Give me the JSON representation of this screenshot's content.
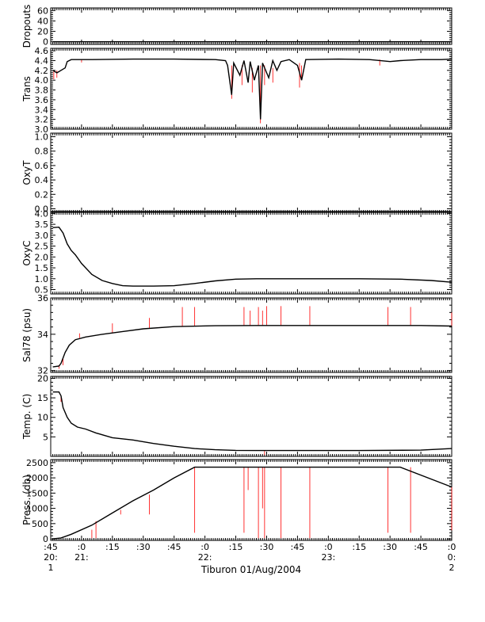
{
  "chart_data": {
    "type": "line",
    "title": "",
    "time_axis": {
      "ticks": [
        {
          "label": ":45",
          "hour": "20:",
          "day": "1"
        },
        {
          "label": ":0",
          "hour": "21:",
          "day": ""
        },
        {
          "label": ":15",
          "hour": "",
          "day": ""
        },
        {
          "label": ":30",
          "hour": "",
          "day": ""
        },
        {
          "label": ":45",
          "hour": "",
          "day": ""
        },
        {
          "label": ":0",
          "hour": "22:",
          "day": ""
        },
        {
          "label": ":15",
          "hour": "",
          "day": ""
        },
        {
          "label": ":30",
          "hour": "",
          "day": ""
        },
        {
          "label": ":45",
          "hour": "",
          "day": ""
        },
        {
          "label": ":0",
          "hour": "23:",
          "day": ""
        },
        {
          "label": ":15",
          "hour": "",
          "day": ""
        },
        {
          "label": ":30",
          "hour": "",
          "day": ""
        },
        {
          "label": ":45",
          "hour": "",
          "day": ""
        },
        {
          "label": ":0",
          "hour": "0:",
          "day": "2"
        }
      ],
      "xlabel": "Tiburon 01/Aug/2004",
      "range_minutes": [
        0,
        195
      ]
    },
    "line_color": "#000000",
    "spike_color": "#ff0000",
    "panels": [
      {
        "id": "dropouts",
        "ylabel": "Dropouts",
        "ylim": [
          -5,
          65
        ],
        "ticks": [
          {
            "v": 0,
            "t": "0"
          },
          {
            "v": 20,
            "t": "20"
          },
          {
            "v": 40,
            "t": "40"
          },
          {
            "v": 60,
            "t": "60"
          }
        ],
        "series": [
          [
            1,
            0
          ],
          [
            195,
            0
          ]
        ],
        "spikes": []
      },
      {
        "id": "trans",
        "ylabel": "Trans",
        "ylim": [
          3.0,
          4.65
        ],
        "ticks": [
          {
            "v": 3.0,
            "t": "3.0"
          },
          {
            "v": 3.2,
            "t": "3.2"
          },
          {
            "v": 3.4,
            "t": "3.4"
          },
          {
            "v": 3.6,
            "t": "3.6"
          },
          {
            "v": 3.8,
            "t": "3.8"
          },
          {
            "v": 4.0,
            "t": "4.0"
          },
          {
            "v": 4.2,
            "t": "4.2"
          },
          {
            "v": 4.4,
            "t": "4.4"
          },
          {
            "v": 4.6,
            "t": "4.6"
          }
        ],
        "series": [
          [
            1,
            4.2
          ],
          [
            3,
            4.15
          ],
          [
            5,
            4.2
          ],
          [
            7,
            4.25
          ],
          [
            8,
            4.38
          ],
          [
            10,
            4.42
          ],
          [
            20,
            4.42
          ],
          [
            40,
            4.43
          ],
          [
            60,
            4.43
          ],
          [
            80,
            4.42
          ],
          [
            85,
            4.4
          ],
          [
            86,
            4.3
          ],
          [
            88,
            3.7
          ],
          [
            89,
            4.35
          ],
          [
            92,
            4.1
          ],
          [
            94,
            4.4
          ],
          [
            96,
            3.95
          ],
          [
            97,
            4.38
          ],
          [
            99,
            4.0
          ],
          [
            101,
            4.3
          ],
          [
            102,
            3.2
          ],
          [
            103,
            4.35
          ],
          [
            106,
            4.05
          ],
          [
            108,
            4.4
          ],
          [
            110,
            4.2
          ],
          [
            112,
            4.38
          ],
          [
            116,
            4.42
          ],
          [
            120,
            4.3
          ],
          [
            122,
            4.0
          ],
          [
            124,
            4.42
          ],
          [
            140,
            4.43
          ],
          [
            155,
            4.42
          ],
          [
            165,
            4.38
          ],
          [
            170,
            4.4
          ],
          [
            180,
            4.42
          ],
          [
            190,
            4.42
          ],
          [
            195,
            4.43
          ]
        ],
        "spikes": [
          [
            1.5,
            4.2,
            4.02
          ],
          [
            3,
            4.2,
            4.05
          ],
          [
            15,
            4.42,
            4.36
          ],
          [
            88,
            4.3,
            3.62
          ],
          [
            93,
            4.3,
            3.9
          ],
          [
            98,
            4.25,
            3.75
          ],
          [
            102,
            4.3,
            3.12
          ],
          [
            104,
            4.3,
            3.9
          ],
          [
            108,
            4.25,
            3.95
          ],
          [
            121,
            4.35,
            3.85
          ],
          [
            122,
            4.3,
            4.0
          ],
          [
            160,
            4.42,
            4.3
          ]
        ]
      },
      {
        "id": "oxyt",
        "ylabel": "OxyT",
        "ylim": [
          -0.05,
          1.05
        ],
        "ticks": [
          {
            "v": 0.0,
            "t": "0.0"
          },
          {
            "v": 0.2,
            "t": "0.2"
          },
          {
            "v": 0.4,
            "t": "0.4"
          },
          {
            "v": 0.6,
            "t": "0.6"
          },
          {
            "v": 0.8,
            "t": "0.8"
          },
          {
            "v": 1.0,
            "t": "1.0"
          }
        ],
        "series": [
          [
            0,
            -0.04
          ],
          [
            195,
            -0.04
          ]
        ],
        "spikes": []
      },
      {
        "id": "oxyc",
        "ylabel": "OxyC",
        "ylim": [
          0.3,
          4.05
        ],
        "ticks": [
          {
            "v": 0.5,
            "t": "0.5"
          },
          {
            "v": 1.0,
            "t": "1.0"
          },
          {
            "v": 1.5,
            "t": "1.5"
          },
          {
            "v": 2.0,
            "t": "2.0"
          },
          {
            "v": 2.5,
            "t": "2.5"
          },
          {
            "v": 3.0,
            "t": "3.0"
          },
          {
            "v": 3.5,
            "t": "3.5"
          },
          {
            "v": 4.0,
            "t": "4.0"
          }
        ],
        "series": [
          [
            1,
            3.35
          ],
          [
            4,
            3.37
          ],
          [
            6,
            3.1
          ],
          [
            8,
            2.6
          ],
          [
            10,
            2.3
          ],
          [
            12,
            2.1
          ],
          [
            15,
            1.7
          ],
          [
            20,
            1.2
          ],
          [
            25,
            0.92
          ],
          [
            30,
            0.78
          ],
          [
            35,
            0.68
          ],
          [
            40,
            0.66
          ],
          [
            50,
            0.66
          ],
          [
            60,
            0.68
          ],
          [
            70,
            0.78
          ],
          [
            80,
            0.9
          ],
          [
            90,
            0.98
          ],
          [
            100,
            1.0
          ],
          [
            150,
            1.0
          ],
          [
            170,
            0.98
          ],
          [
            185,
            0.92
          ],
          [
            195,
            0.84
          ]
        ],
        "spikes": []
      },
      {
        "id": "sal78",
        "ylabel": "Sal78 (psu)",
        "ylim": [
          31.9,
          36.0
        ],
        "ticks": [
          {
            "v": 32,
            "t": "32"
          },
          {
            "v": 34,
            "t": "34"
          },
          {
            "v": 36,
            "t": "36"
          }
        ],
        "series": [
          [
            1,
            32.2
          ],
          [
            4,
            32.25
          ],
          [
            5,
            32.4
          ],
          [
            7,
            33.0
          ],
          [
            9,
            33.4
          ],
          [
            12,
            33.7
          ],
          [
            17,
            33.85
          ],
          [
            25,
            34.0
          ],
          [
            35,
            34.15
          ],
          [
            45,
            34.3
          ],
          [
            60,
            34.42
          ],
          [
            80,
            34.47
          ],
          [
            100,
            34.48
          ],
          [
            150,
            34.48
          ],
          [
            180,
            34.48
          ],
          [
            195,
            34.45
          ]
        ],
        "spikes": [
          [
            4,
            32.3,
            32.1
          ],
          [
            6,
            32.7,
            32.3
          ],
          [
            14,
            33.8,
            34.05
          ],
          [
            30,
            34.1,
            34.6
          ],
          [
            48,
            34.35,
            34.9
          ],
          [
            64,
            34.45,
            35.5
          ],
          [
            70,
            34.45,
            35.5
          ],
          [
            94,
            34.48,
            35.5
          ],
          [
            97,
            34.48,
            35.3
          ],
          [
            101,
            34.48,
            35.5
          ],
          [
            103,
            34.48,
            35.3
          ],
          [
            105,
            34.48,
            35.55
          ],
          [
            112,
            34.48,
            35.55
          ],
          [
            126,
            34.48,
            35.55
          ],
          [
            164,
            34.48,
            35.5
          ],
          [
            175,
            34.48,
            35.5
          ],
          [
            195,
            34.45,
            35.2
          ]
        ]
      },
      {
        "id": "temp",
        "ylabel": "Temp. (C)",
        "ylim": [
          0,
          20.5
        ],
        "ticks": [
          {
            "v": 5,
            "t": "5"
          },
          {
            "v": 10,
            "t": "10"
          },
          {
            "v": 15,
            "t": "15"
          },
          {
            "v": 20,
            "t": "20"
          }
        ],
        "series": [
          [
            1,
            16.5
          ],
          [
            4,
            16.5
          ],
          [
            5,
            15.5
          ],
          [
            6,
            12.5
          ],
          [
            8,
            10
          ],
          [
            10,
            8.5
          ],
          [
            13,
            7.5
          ],
          [
            17,
            7
          ],
          [
            22,
            6
          ],
          [
            30,
            4.8
          ],
          [
            40,
            4.2
          ],
          [
            50,
            3.3
          ],
          [
            60,
            2.6
          ],
          [
            70,
            2.0
          ],
          [
            80,
            1.7
          ],
          [
            90,
            1.55
          ],
          [
            100,
            1.5
          ],
          [
            150,
            1.5
          ],
          [
            180,
            1.6
          ],
          [
            195,
            2.0
          ]
        ],
        "spikes": [
          [
            5,
            15.5,
            14
          ],
          [
            104,
            1.5,
            0.3
          ]
        ]
      },
      {
        "id": "press",
        "ylabel": "Press. (db)",
        "ylim": [
          -50,
          2600
        ],
        "ticks": [
          {
            "v": 0,
            "t": "0"
          },
          {
            "v": 500,
            "t": "500"
          },
          {
            "v": 1000,
            "t": "1000"
          },
          {
            "v": 1500,
            "t": "1500"
          },
          {
            "v": 2000,
            "t": "2000"
          },
          {
            "v": 2500,
            "t": "2500"
          }
        ],
        "series": [
          [
            1,
            0
          ],
          [
            5,
            30
          ],
          [
            10,
            150
          ],
          [
            20,
            450
          ],
          [
            30,
            850
          ],
          [
            40,
            1250
          ],
          [
            50,
            1600
          ],
          [
            60,
            2000
          ],
          [
            70,
            2350
          ],
          [
            150,
            2350
          ],
          [
            170,
            2350
          ],
          [
            195,
            1700
          ]
        ],
        "spikes": [
          [
            20,
            300,
            20
          ],
          [
            22,
            580,
            20
          ],
          [
            34,
            950,
            800
          ],
          [
            48,
            1450,
            800
          ],
          [
            70,
            2350,
            200
          ],
          [
            94,
            2350,
            200
          ],
          [
            96,
            2350,
            1600
          ],
          [
            101,
            2350,
            20
          ],
          [
            103,
            2350,
            1000
          ],
          [
            104,
            2350,
            20
          ],
          [
            112,
            2350,
            20
          ],
          [
            126,
            2350,
            20
          ],
          [
            164,
            2350,
            200
          ],
          [
            175,
            2350,
            200
          ],
          [
            195,
            1700,
            280
          ]
        ]
      }
    ]
  }
}
